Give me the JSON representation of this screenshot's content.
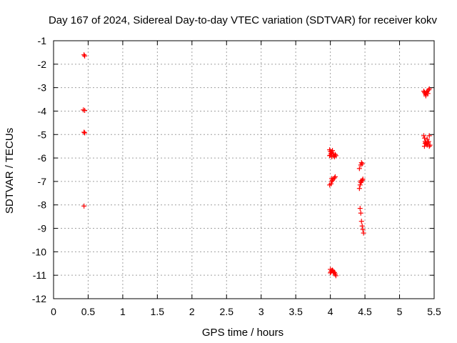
{
  "chart_data": {
    "type": "scatter",
    "title": "Day 167 of 2024, Sidereal Day-to-day VTEC variation (SDTVAR) for receiver kokv",
    "xlabel": "GPS time / hours",
    "ylabel": "SDTVAR / TECUs",
    "xlim": [
      0,
      5.5
    ],
    "ylim": [
      -12,
      -1
    ],
    "x_ticks": [
      0,
      0.5,
      1,
      1.5,
      2,
      2.5,
      3,
      3.5,
      4,
      4.5,
      5,
      5.5
    ],
    "x_tick_labels": [
      "0",
      "0.5",
      "1",
      "1.5",
      "2",
      "2.5",
      "3",
      "3.5",
      "4",
      "4.5",
      "5",
      "5.5"
    ],
    "y_ticks": [
      -1,
      -2,
      -3,
      -4,
      -5,
      -6,
      -7,
      -8,
      -9,
      -10,
      -11,
      -12
    ],
    "y_tick_labels": [
      "-1",
      "-2",
      "-3",
      "-4",
      "-5",
      "-6",
      "-7",
      "-8",
      "-9",
      "-10",
      "-11",
      "-12"
    ],
    "grid": true,
    "marker": "+",
    "color": "#ff0000",
    "series": [
      {
        "name": "SDTVAR",
        "points": [
          [
            0.44,
            -1.6
          ],
          [
            0.45,
            -1.65
          ],
          [
            0.43,
            -3.95
          ],
          [
            0.45,
            -3.97
          ],
          [
            0.44,
            -4.9
          ],
          [
            0.45,
            -4.93
          ],
          [
            0.44,
            -8.05
          ],
          [
            3.99,
            -5.65
          ],
          [
            4.0,
            -5.72
          ],
          [
            4.01,
            -5.8
          ],
          [
            4.0,
            -5.88
          ],
          [
            4.02,
            -5.75
          ],
          [
            4.03,
            -5.68
          ],
          [
            4.04,
            -5.82
          ],
          [
            4.05,
            -5.9
          ],
          [
            4.06,
            -5.95
          ],
          [
            4.07,
            -5.85
          ],
          [
            4.02,
            -5.95
          ],
          [
            3.99,
            -5.9
          ],
          [
            4.08,
            -5.9
          ],
          [
            3.99,
            -7.15
          ],
          [
            4.01,
            -7.1
          ],
          [
            4.02,
            -7.0
          ],
          [
            4.03,
            -6.95
          ],
          [
            4.04,
            -6.9
          ],
          [
            4.06,
            -6.85
          ],
          [
            4.07,
            -6.8
          ],
          [
            4.02,
            -6.88
          ],
          [
            4.0,
            -10.75
          ],
          [
            4.02,
            -10.8
          ],
          [
            4.01,
            -10.85
          ],
          [
            4.03,
            -10.78
          ],
          [
            4.04,
            -10.82
          ],
          [
            4.05,
            -10.9
          ],
          [
            4.06,
            -10.88
          ],
          [
            4.07,
            -10.95
          ],
          [
            4.08,
            -11.02
          ],
          [
            4.0,
            -10.9
          ],
          [
            4.42,
            -6.45
          ],
          [
            4.44,
            -6.3
          ],
          [
            4.45,
            -6.2
          ],
          [
            4.46,
            -6.25
          ],
          [
            4.42,
            -7.3
          ],
          [
            4.43,
            -7.15
          ],
          [
            4.44,
            -7.05
          ],
          [
            4.45,
            -7.0
          ],
          [
            4.46,
            -6.95
          ],
          [
            4.47,
            -6.9
          ],
          [
            4.44,
            -6.98
          ],
          [
            4.43,
            -8.15
          ],
          [
            4.44,
            -8.35
          ],
          [
            4.45,
            -8.7
          ],
          [
            4.46,
            -8.9
          ],
          [
            4.47,
            -9.05
          ],
          [
            4.48,
            -9.2
          ],
          [
            5.35,
            -3.15
          ],
          [
            5.36,
            -3.2
          ],
          [
            5.37,
            -3.25
          ],
          [
            5.38,
            -3.3
          ],
          [
            5.39,
            -3.2
          ],
          [
            5.4,
            -3.15
          ],
          [
            5.41,
            -3.25
          ],
          [
            5.42,
            -3.1
          ],
          [
            5.43,
            -3.05
          ],
          [
            5.38,
            -3.35
          ],
          [
            5.35,
            -5.05
          ],
          [
            5.36,
            -5.15
          ],
          [
            5.37,
            -5.3
          ],
          [
            5.38,
            -5.35
          ],
          [
            5.39,
            -5.4
          ],
          [
            5.4,
            -5.45
          ],
          [
            5.41,
            -5.35
          ],
          [
            5.42,
            -5.3
          ],
          [
            5.43,
            -5.5
          ],
          [
            5.44,
            -5.45
          ],
          [
            5.36,
            -5.5
          ],
          [
            5.37,
            -5.38
          ],
          [
            5.4,
            -5.2
          ],
          [
            5.43,
            -5.05
          ]
        ]
      }
    ]
  }
}
